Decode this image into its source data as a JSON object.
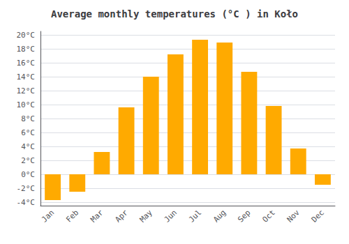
{
  "chart_data": {
    "type": "bar",
    "title": "Average monthly temperatures (°C ) in Koło",
    "categories": [
      "Jan",
      "Feb",
      "Mar",
      "Apr",
      "May",
      "Jun",
      "Jul",
      "Aug",
      "Sep",
      "Oct",
      "Nov",
      "Dec"
    ],
    "values": [
      -3.7,
      -2.5,
      3.2,
      9.6,
      14.0,
      17.2,
      19.3,
      18.9,
      14.7,
      9.8,
      3.7,
      -1.5
    ],
    "color": "#FFAA00",
    "ylim": [
      -4.5,
      20.5
    ],
    "yticks": [
      {
        "value": -4,
        "label": "-4°C"
      },
      {
        "value": -2,
        "label": "-2°C"
      },
      {
        "value": 0,
        "label": "0°C"
      },
      {
        "value": 2,
        "label": "2°C"
      },
      {
        "value": 4,
        "label": "4°C"
      },
      {
        "value": 6,
        "label": "6°C"
      },
      {
        "value": 8,
        "label": "8°C"
      },
      {
        "value": 10,
        "label": "10°C"
      },
      {
        "value": 12,
        "label": "12°C"
      },
      {
        "value": 14,
        "label": "14°C"
      },
      {
        "value": 16,
        "label": "16°C"
      },
      {
        "value": 18,
        "label": "18°C"
      },
      {
        "value": 20,
        "label": "20°C"
      }
    ],
    "grid": true
  }
}
